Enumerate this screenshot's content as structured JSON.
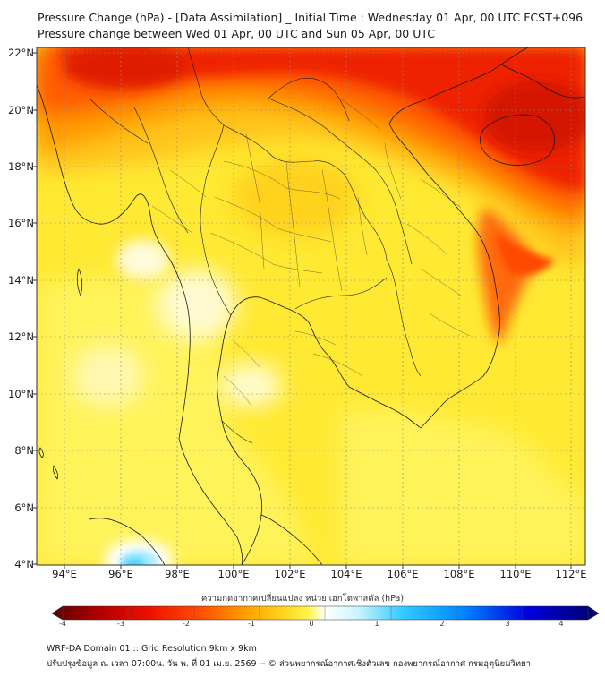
{
  "header": {
    "title_line1": "Pressure Change (hPa) - [Data Assimilation] _ Initial Time : Wednesday 01 Apr, 00 UTC FCST+096",
    "title_line2": "Pressure change between Wed 01 Apr, 00 UTC and Sun 05 Apr, 00 UTC"
  },
  "map": {
    "lat_labels": [
      "22°N",
      "20°N",
      "18°N",
      "16°N",
      "14°N",
      "12°N",
      "10°N",
      "8°N",
      "6°N",
      "4°N"
    ],
    "lon_labels": [
      "94°E",
      "96°E",
      "98°E",
      "100°E",
      "102°E",
      "104°E",
      "106°E",
      "108°E",
      "110°E",
      "112°E"
    ],
    "lat_range": [
      4,
      22.2
    ],
    "lon_range": [
      93,
      112.5
    ]
  },
  "colorbar": {
    "title": "ความกดอากาศเปลี่ยนแปลง หน่วย เฮกโตพาสคัล (hPa)",
    "ticks": [
      "-4",
      "-3",
      "-2",
      "-1",
      "0",
      "1",
      "2",
      "3",
      "4"
    ],
    "range": [
      -4,
      4
    ],
    "colors": [
      "#5a0000",
      "#cc0000",
      "#ff3300",
      "#ff8800",
      "#ffd21a",
      "#fff44f",
      "#ffffd0",
      "#ffffff",
      "#c8f4ff",
      "#33ccff",
      "#0077ff",
      "#0000cc",
      "#000066"
    ]
  },
  "footer": {
    "line1": "WRF-DA Domain 01 :: Grid Resolution 9km x 9km",
    "line2": "ปรับปรุงข้อมูล ณ เวลา 07:00น. วัน พ. ที่ 01 เม.ย. 2569 -- © ส่วนพยากรณ์อากาศเชิงตัวเลข กองพยากรณ์อากาศ กรมอุตุนิยมวิทยา"
  }
}
